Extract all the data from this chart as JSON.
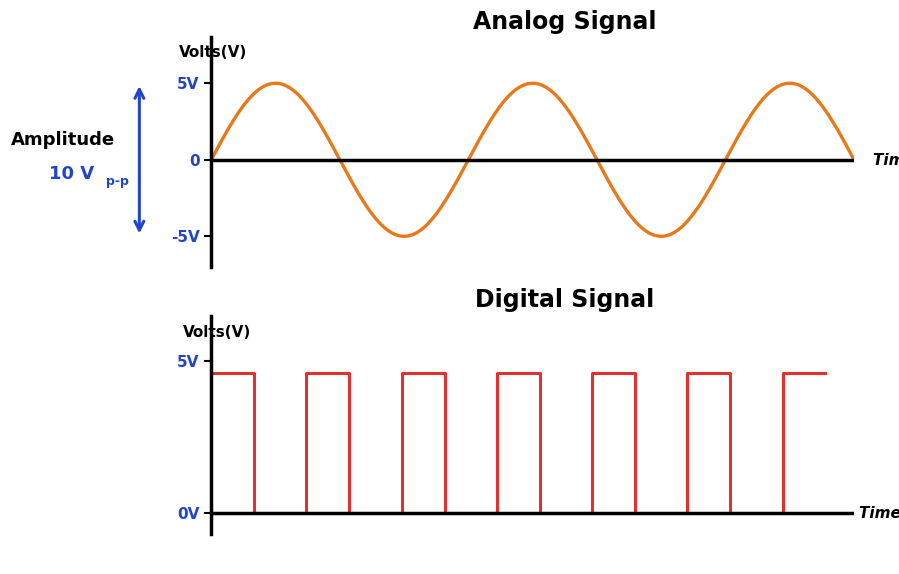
{
  "analog_title": "Analog Signal",
  "digital_title": "Digital Signal",
  "analog_ylabel": "Volts(V)",
  "digital_ylabel": "Volts(V)",
  "xlabel": "Time (t)",
  "analog_amplitude": 5,
  "analog_color": "#E8791A",
  "digital_color": "#E03030",
  "axis_color": "#000000",
  "tick_color": "#2244CC",
  "arrow_color": "#2244CC",
  "amplitude_label": "Amplitude",
  "analog_yticks": [
    -5,
    0,
    5
  ],
  "analog_ytick_labels": [
    "-5V",
    "0",
    "5V"
  ],
  "digital_yticks": [
    0,
    5
  ],
  "digital_ytick_labels": [
    "0V",
    "5V"
  ],
  "bg_color": "#ffffff",
  "title_fontsize": 17,
  "label_fontsize": 11,
  "tick_fontsize": 11,
  "annot_fontsize": 13,
  "digital_high": 4.6,
  "digital_low": 0,
  "digital_period": 1.0,
  "digital_duty": 0.45,
  "num_digital_cycles": 6,
  "analog_num_cycles": 2.5
}
